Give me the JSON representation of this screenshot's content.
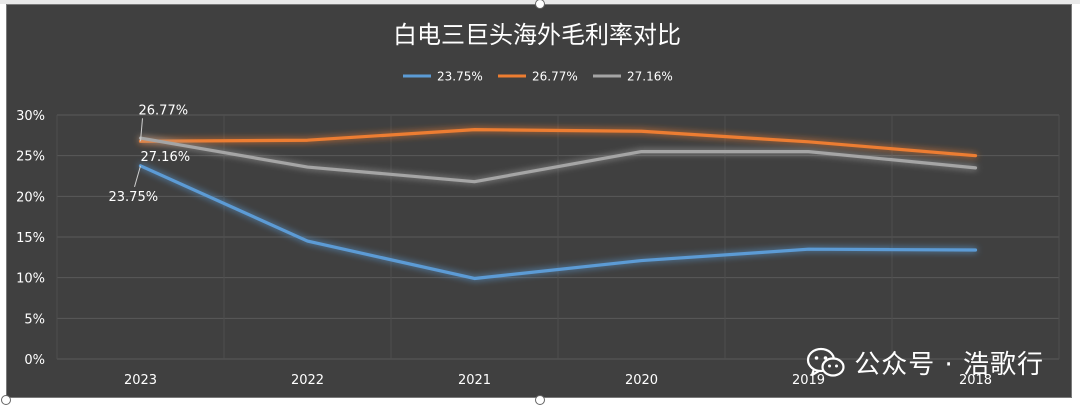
{
  "chart_data": {
    "type": "line",
    "title": "白电三巨头海外毛利率对比",
    "categories": [
      "2023",
      "2022",
      "2021",
      "2020",
      "2019",
      "2018"
    ],
    "ylim": [
      0,
      30
    ],
    "yticks": [
      "0%",
      "5%",
      "10%",
      "15%",
      "20%",
      "25%",
      "30%"
    ],
    "grid": true,
    "legend_position": "top",
    "series": [
      {
        "name": "23.75%",
        "color": "#5b9bd5",
        "values": [
          23.75,
          14.5,
          9.9,
          12.1,
          13.5,
          13.4
        ]
      },
      {
        "name": "26.77%",
        "color": "#ed7d31",
        "values": [
          26.77,
          26.9,
          28.2,
          28.0,
          26.7,
          25.0
        ]
      },
      {
        "name": "27.16%",
        "color": "#a5a5a5",
        "values": [
          27.16,
          23.6,
          21.8,
          25.5,
          25.5,
          23.5
        ]
      }
    ],
    "data_labels": [
      {
        "series": 1,
        "point": 0,
        "text": "26.77%"
      },
      {
        "series": 2,
        "point": 0,
        "text": "27.16%"
      },
      {
        "series": 0,
        "point": 0,
        "text": "23.75%"
      }
    ]
  },
  "watermark": {
    "icon": "wechat-icon",
    "text": "公众号 · 浩歌行"
  }
}
